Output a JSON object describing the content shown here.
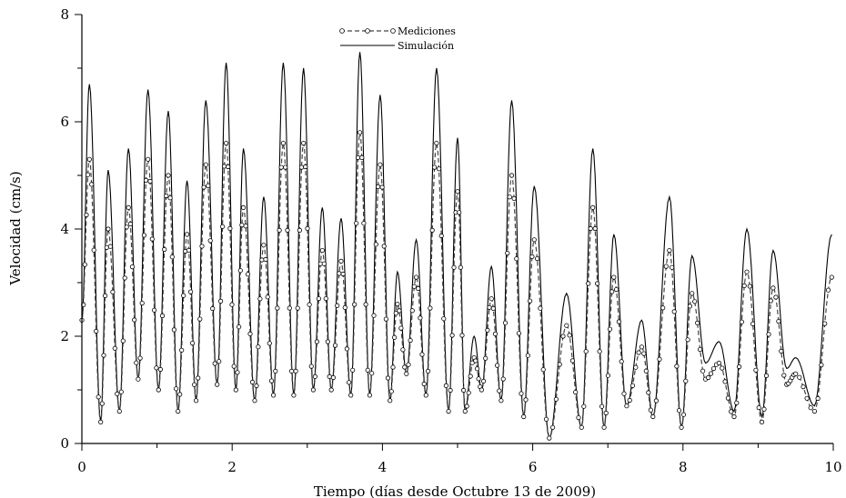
{
  "chart_data": {
    "type": "line",
    "title": "",
    "xlabel": "Tiempo (días desde Octubre 13 de 2009)",
    "ylabel": "Velocidad (cm/s)",
    "xlim": [
      0,
      10
    ],
    "ylim": [
      0,
      8
    ],
    "xticks": [
      0,
      2,
      4,
      6,
      8,
      10
    ],
    "yticks": [
      0,
      2,
      4,
      6,
      8
    ],
    "grid": false,
    "legend_position": "top-center",
    "series": [
      {
        "name": "Mediciones",
        "style": "dashed line with open circle markers",
        "color": "#444444",
        "peaks": [
          [
            0.1,
            5.3
          ],
          [
            0.35,
            4.0
          ],
          [
            0.62,
            4.4
          ],
          [
            0.88,
            5.3
          ],
          [
            1.15,
            5.0
          ],
          [
            1.4,
            3.9
          ],
          [
            1.65,
            5.2
          ],
          [
            1.92,
            5.6
          ],
          [
            2.15,
            4.4
          ],
          [
            2.42,
            3.7
          ],
          [
            2.68,
            5.6
          ],
          [
            2.95,
            5.6
          ],
          [
            3.2,
            3.6
          ],
          [
            3.45,
            3.4
          ],
          [
            3.7,
            5.8
          ],
          [
            3.97,
            5.2
          ],
          [
            4.2,
            2.6
          ],
          [
            4.45,
            3.1
          ],
          [
            4.72,
            5.6
          ],
          [
            5.0,
            4.7
          ],
          [
            5.22,
            1.6
          ],
          [
            5.45,
            2.7
          ],
          [
            5.72,
            5.0
          ],
          [
            6.02,
            3.8
          ],
          [
            6.45,
            2.2
          ],
          [
            6.8,
            4.4
          ],
          [
            7.08,
            3.1
          ],
          [
            7.45,
            1.8
          ],
          [
            7.82,
            3.6
          ],
          [
            8.12,
            2.8
          ],
          [
            8.48,
            1.5
          ],
          [
            8.85,
            3.2
          ],
          [
            9.2,
            2.9
          ],
          [
            9.5,
            1.3
          ],
          [
            9.98,
            3.1
          ]
        ],
        "troughs": [
          [
            0.0,
            2.3
          ],
          [
            0.25,
            0.4
          ],
          [
            0.5,
            0.6
          ],
          [
            0.75,
            1.2
          ],
          [
            1.02,
            1.0
          ],
          [
            1.28,
            0.6
          ],
          [
            1.52,
            0.8
          ],
          [
            1.8,
            1.1
          ],
          [
            2.05,
            1.0
          ],
          [
            2.3,
            0.8
          ],
          [
            2.55,
            0.9
          ],
          [
            2.82,
            0.9
          ],
          [
            3.08,
            1.0
          ],
          [
            3.32,
            1.0
          ],
          [
            3.58,
            0.9
          ],
          [
            3.83,
            0.9
          ],
          [
            4.1,
            0.8
          ],
          [
            4.32,
            1.3
          ],
          [
            4.58,
            0.9
          ],
          [
            4.88,
            0.6
          ],
          [
            5.1,
            0.6
          ],
          [
            5.32,
            1.0
          ],
          [
            5.58,
            0.8
          ],
          [
            5.88,
            0.5
          ],
          [
            6.22,
            0.1
          ],
          [
            6.65,
            0.3
          ],
          [
            6.95,
            0.3
          ],
          [
            7.25,
            0.7
          ],
          [
            7.6,
            0.5
          ],
          [
            7.98,
            0.3
          ],
          [
            8.3,
            1.2
          ],
          [
            8.68,
            0.5
          ],
          [
            9.05,
            0.4
          ],
          [
            9.38,
            1.1
          ],
          [
            9.75,
            0.6
          ]
        ]
      },
      {
        "name": "Simulación",
        "style": "solid line",
        "color": "#000000",
        "peaks": [
          [
            0.1,
            6.7
          ],
          [
            0.35,
            5.1
          ],
          [
            0.62,
            5.5
          ],
          [
            0.88,
            6.6
          ],
          [
            1.15,
            6.2
          ],
          [
            1.4,
            4.9
          ],
          [
            1.65,
            6.4
          ],
          [
            1.92,
            7.1
          ],
          [
            2.15,
            5.5
          ],
          [
            2.42,
            4.6
          ],
          [
            2.68,
            7.1
          ],
          [
            2.95,
            7.0
          ],
          [
            3.2,
            4.4
          ],
          [
            3.45,
            4.2
          ],
          [
            3.7,
            7.3
          ],
          [
            3.97,
            6.5
          ],
          [
            4.2,
            3.2
          ],
          [
            4.45,
            3.8
          ],
          [
            4.72,
            7.0
          ],
          [
            5.0,
            5.7
          ],
          [
            5.22,
            2.0
          ],
          [
            5.45,
            3.3
          ],
          [
            5.72,
            6.4
          ],
          [
            6.02,
            4.8
          ],
          [
            6.45,
            2.8
          ],
          [
            6.8,
            5.5
          ],
          [
            7.08,
            3.9
          ],
          [
            7.45,
            2.3
          ],
          [
            7.82,
            4.6
          ],
          [
            8.12,
            3.5
          ],
          [
            8.48,
            1.9
          ],
          [
            8.85,
            4.0
          ],
          [
            9.2,
            3.6
          ],
          [
            9.5,
            1.6
          ],
          [
            9.98,
            3.9
          ]
        ],
        "troughs": [
          [
            0.0,
            2.3
          ],
          [
            0.25,
            0.4
          ],
          [
            0.5,
            0.6
          ],
          [
            0.75,
            1.2
          ],
          [
            1.02,
            1.0
          ],
          [
            1.28,
            0.6
          ],
          [
            1.52,
            0.8
          ],
          [
            1.8,
            1.1
          ],
          [
            2.05,
            1.0
          ],
          [
            2.3,
            0.8
          ],
          [
            2.55,
            0.9
          ],
          [
            2.82,
            0.9
          ],
          [
            3.08,
            1.0
          ],
          [
            3.32,
            1.0
          ],
          [
            3.58,
            0.9
          ],
          [
            3.83,
            0.9
          ],
          [
            4.1,
            0.8
          ],
          [
            4.32,
            1.3
          ],
          [
            4.58,
            0.9
          ],
          [
            4.88,
            0.6
          ],
          [
            5.1,
            0.6
          ],
          [
            5.32,
            1.0
          ],
          [
            5.58,
            0.8
          ],
          [
            5.88,
            0.5
          ],
          [
            6.22,
            0.1
          ],
          [
            6.65,
            0.3
          ],
          [
            6.95,
            0.3
          ],
          [
            7.25,
            0.7
          ],
          [
            7.6,
            0.5
          ],
          [
            7.98,
            0.3
          ],
          [
            8.3,
            1.5
          ],
          [
            8.68,
            0.6
          ],
          [
            9.05,
            0.5
          ],
          [
            9.38,
            1.4
          ],
          [
            9.75,
            0.7
          ]
        ]
      }
    ]
  }
}
